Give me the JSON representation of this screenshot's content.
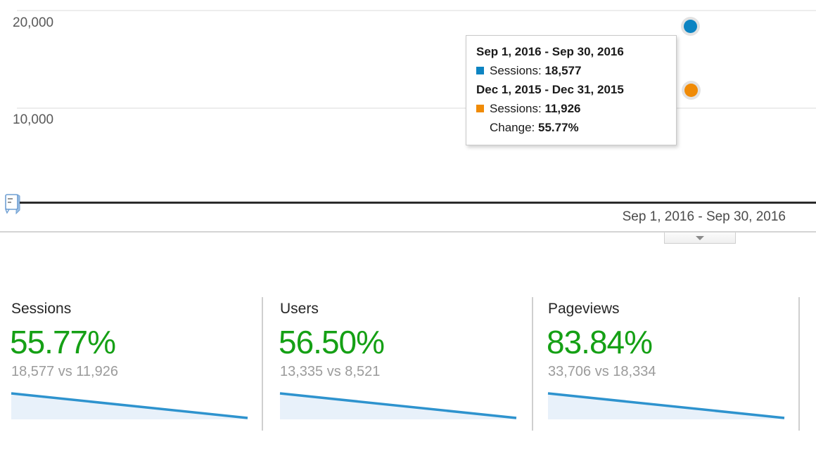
{
  "colors": {
    "current_blue": "#0d84c2",
    "previous_orange": "#f08b07",
    "positive_green": "#15a015",
    "spark_line": "#2e93ce",
    "spark_fill": "#e8f1fa"
  },
  "chart": {
    "y_axis_labels": {
      "top": "20,000",
      "mid": "10,000"
    },
    "tooltip": {
      "period1_label": "Sep 1, 2016 - Sep 30, 2016",
      "period1_metric_label": "Sessions:",
      "period1_value": "18,577",
      "period2_label": "Dec 1, 2015 - Dec 31, 2015",
      "period2_metric_label": "Sessions:",
      "period2_value": "11,926",
      "change_label": "Change:",
      "change_value": "55.77%"
    }
  },
  "date_selector": {
    "range_label": "Sep 1, 2016 - Sep 30, 2016"
  },
  "scorecards": [
    {
      "title": "Sessions",
      "change_percent": "55.77%",
      "comparison": "18,577 vs 11,926"
    },
    {
      "title": "Users",
      "change_percent": "56.50%",
      "comparison": "13,335 vs 8,521"
    },
    {
      "title": "Pageviews",
      "change_percent": "83.84%",
      "comparison": "33,706 vs 18,334"
    }
  ],
  "chart_data": {
    "type": "line",
    "title": "",
    "ylabel": "Sessions",
    "y_axis_ticks": [
      10000,
      20000
    ],
    "ylim": [
      0,
      21000
    ],
    "grid": true,
    "series": [
      {
        "name": "Sep 1, 2016 - Sep 30, 2016",
        "color": "#0d84c2",
        "x": [
          "Sep 2016"
        ],
        "values": [
          18577
        ]
      },
      {
        "name": "Dec 1, 2015 - Dec 31, 2015",
        "color": "#f08b07",
        "x": [
          "Dec 2015"
        ],
        "values": [
          11926
        ]
      }
    ],
    "change_percent": 55.77,
    "sparklines": [
      {
        "metric": "Sessions",
        "line": [
          [
            2,
            4
          ],
          [
            338,
            39
          ]
        ],
        "baseline": 41
      },
      {
        "metric": "Users",
        "line": [
          [
            2,
            4
          ],
          [
            338,
            39
          ]
        ],
        "baseline": 41
      },
      {
        "metric": "Pageviews",
        "line": [
          [
            2,
            4
          ],
          [
            338,
            39
          ]
        ],
        "baseline": 41
      }
    ]
  }
}
